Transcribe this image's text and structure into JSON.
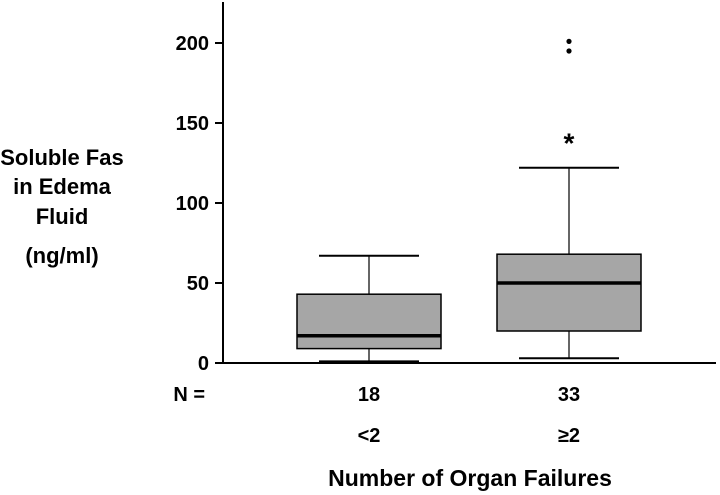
{
  "chart_data": {
    "type": "box",
    "ylabel_lines": [
      "Soluble Fas",
      "in Edema",
      "Fluid",
      "(ng/ml)"
    ],
    "xlabel": "Number of Organ Failures",
    "ylim": [
      0,
      225
    ],
    "yticks": [
      0,
      50,
      100,
      150,
      200
    ],
    "n_label": "N =",
    "groups": [
      {
        "category": "<2",
        "n": "18",
        "whisker_low": 1,
        "q1": 9,
        "median": 17,
        "q3": 43,
        "whisker_high": 67,
        "outliers": [],
        "extremes": []
      },
      {
        "category": "≥2",
        "n": "33",
        "whisker_low": 3,
        "q1": 20,
        "median": 50,
        "q3": 68,
        "whisker_high": 122,
        "outliers": [],
        "extremes": [
          141,
          195,
          201
        ]
      }
    ],
    "colors": {
      "box_fill": "#a6a6a6",
      "stroke": "#000000"
    }
  }
}
